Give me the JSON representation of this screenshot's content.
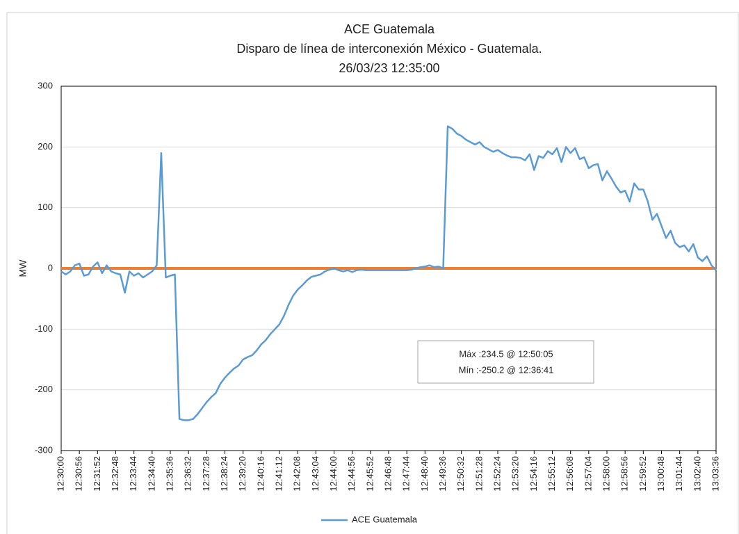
{
  "chart_data": {
    "type": "line",
    "title": [
      "ACE Guatemala",
      "Disparo de línea de interconexión México - Guatemala.",
      "26/03/23 12:35:00"
    ],
    "y_label": "MW",
    "categories": [
      "12:30:00",
      null,
      null,
      null,
      "12:30:56",
      null,
      null,
      null,
      "12:31:52",
      null,
      null,
      null,
      "12:32:48",
      null,
      null,
      null,
      "12:33:44",
      null,
      null,
      null,
      "12:34:40",
      null,
      null,
      null,
      "12:35:36",
      null,
      null,
      null,
      "12:36:32",
      null,
      null,
      null,
      "12:37:28",
      null,
      null,
      null,
      "12:38:24",
      null,
      null,
      null,
      "12:39:20",
      null,
      null,
      null,
      "12:40:16",
      null,
      null,
      null,
      "12:41:12",
      null,
      null,
      null,
      "12:42:08",
      null,
      null,
      null,
      "12:43:04",
      null,
      null,
      null,
      "12:44:00",
      null,
      null,
      null,
      "12:44:56",
      null,
      null,
      null,
      "12:45:52",
      null,
      null,
      null,
      "12:46:48",
      null,
      null,
      null,
      "12:47:44",
      null,
      null,
      null,
      "12:48:40",
      null,
      null,
      null,
      "12:49:36",
      null,
      null,
      null,
      "12:50:32",
      null,
      null,
      null,
      "12:51:28",
      null,
      null,
      null,
      "12:52:24",
      null,
      null,
      null,
      "12:53:20",
      null,
      null,
      null,
      "12:54:16",
      null,
      null,
      null,
      "12:55:12",
      null,
      null,
      null,
      "12:56:08",
      null,
      null,
      null,
      "12:57:04",
      null,
      null,
      null,
      "12:58:00",
      null,
      null,
      null,
      "12:58:56",
      null,
      null,
      null,
      "12:59:52",
      null,
      null,
      null,
      "13:00:48",
      null,
      null,
      null,
      "13:01:44",
      null,
      null,
      null,
      "13:02:40",
      null,
      null,
      null,
      "13:03:36"
    ],
    "series": [
      {
        "name": "ACE Guatemala",
        "color": "#5b9bd5",
        "values": [
          -5,
          -10,
          -5,
          5,
          8,
          -12,
          -10,
          3,
          10,
          -8,
          5,
          -5,
          -8,
          -10,
          -40,
          -5,
          -12,
          -8,
          -15,
          -10,
          -5,
          5,
          190,
          -15,
          -12,
          -10,
          -248,
          -250,
          -250,
          -248,
          -240,
          -230,
          -220,
          -212,
          -205,
          -190,
          -180,
          -172,
          -165,
          -160,
          -150,
          -146,
          -143,
          -135,
          -125,
          -118,
          -108,
          -100,
          -92,
          -78,
          -60,
          -45,
          -35,
          -28,
          -20,
          -14,
          -12,
          -10,
          -5,
          -2,
          0,
          -3,
          -5,
          -3,
          -6,
          -3,
          -2,
          -3,
          -3,
          -3,
          -3,
          -3,
          -3,
          -3,
          -3,
          -3,
          -3,
          -2,
          0,
          2,
          3,
          5,
          2,
          3,
          0,
          234,
          230,
          222,
          218,
          212,
          208,
          204,
          208,
          200,
          196,
          192,
          195,
          190,
          186,
          183,
          183,
          182,
          178,
          188,
          162,
          185,
          182,
          193,
          188,
          198,
          175,
          200,
          190,
          198,
          180,
          183,
          165,
          170,
          172,
          145,
          160,
          148,
          135,
          125,
          128,
          110,
          140,
          130,
          130,
          110,
          80,
          90,
          70,
          50,
          62,
          42,
          35,
          38,
          28,
          40,
          18,
          12,
          20,
          5,
          -3
        ]
      }
    ],
    "zero_line": {
      "value": 0,
      "color": "#ed7d31"
    },
    "annotations": [
      "Máx :234.5 @ 12:50:05",
      "Mín :-250.2 @ 12:36:41"
    ],
    "ylim": [
      -300,
      300
    ],
    "yticks": [
      -300,
      -200,
      -100,
      0,
      100,
      200,
      300
    ],
    "grid": true,
    "legend": "bottom"
  }
}
